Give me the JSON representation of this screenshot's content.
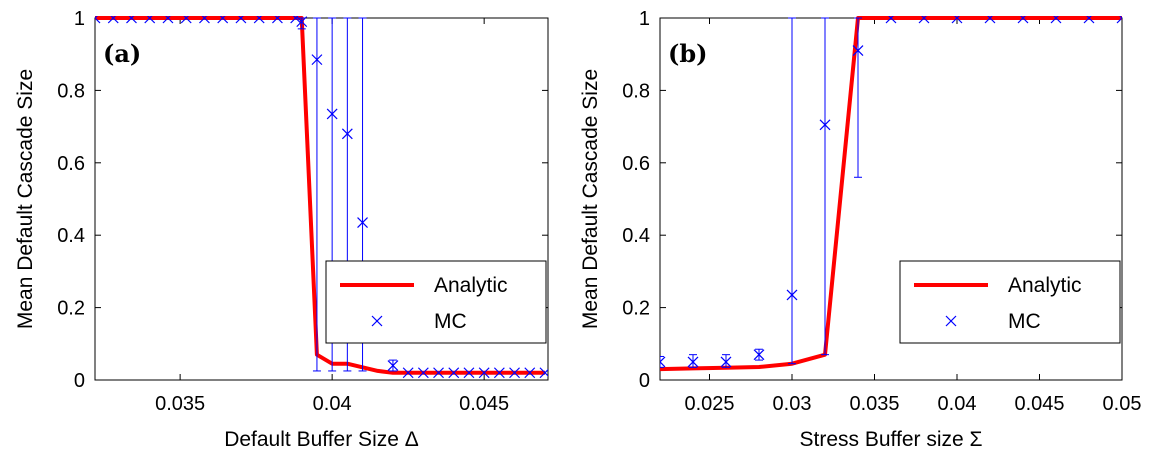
{
  "chart_data": [
    {
      "type": "line",
      "panel_label": "(a)",
      "xlabel": "Default Buffer Size Δ",
      "ylabel": "Mean Default Cascade Size",
      "xlim": [
        0.0322,
        0.0471
      ],
      "ylim": [
        0,
        1
      ],
      "xticks": [
        0.035,
        0.04,
        0.045
      ],
      "xtick_labels": [
        "0.035",
        "0.04",
        "0.045"
      ],
      "yticks": [
        0,
        0.2,
        0.4,
        0.6,
        0.8,
        1
      ],
      "ytick_labels": [
        "0",
        "0.2",
        "0.4",
        "0.6",
        "0.8",
        "1"
      ],
      "grid": false,
      "legend": "lower-right",
      "series": [
        {
          "name": "Analytic",
          "style": "line",
          "color": "#ff0000",
          "x": [
            0.0322,
            0.039,
            0.0395,
            0.04,
            0.0405,
            0.041,
            0.0415,
            0.042,
            0.0425,
            0.043,
            0.0435,
            0.044,
            0.0445,
            0.045,
            0.0455,
            0.046,
            0.0465,
            0.047
          ],
          "y": [
            1.0,
            1.0,
            0.07,
            0.045,
            0.045,
            0.035,
            0.025,
            0.02,
            0.02,
            0.02,
            0.02,
            0.02,
            0.02,
            0.02,
            0.02,
            0.02,
            0.02,
            0.02
          ]
        },
        {
          "name": "MC",
          "style": "marker-x",
          "color": "#0000ff",
          "x": [
            0.0322,
            0.0328,
            0.0334,
            0.034,
            0.0346,
            0.0352,
            0.0358,
            0.0364,
            0.037,
            0.0376,
            0.0382,
            0.0388,
            0.039,
            0.0395,
            0.04,
            0.0405,
            0.041,
            0.042,
            0.0425,
            0.043,
            0.0435,
            0.044,
            0.0445,
            0.045,
            0.0455,
            0.046,
            0.0465,
            0.047
          ],
          "y": [
            1.0,
            1.0,
            1.0,
            1.0,
            1.0,
            1.0,
            1.0,
            1.0,
            1.0,
            1.0,
            1.0,
            1.0,
            0.99,
            0.885,
            0.735,
            0.68,
            0.435,
            0.04,
            0.02,
            0.02,
            0.02,
            0.02,
            0.02,
            0.02,
            0.02,
            0.02,
            0.02,
            0.02
          ],
          "err_low": [
            1.0,
            1.0,
            1.0,
            1.0,
            1.0,
            1.0,
            1.0,
            1.0,
            1.0,
            1.0,
            1.0,
            1.0,
            0.97,
            0.025,
            0.025,
            0.025,
            0.025,
            0.025,
            0.02,
            0.02,
            0.02,
            0.02,
            0.02,
            0.02,
            0.02,
            0.02,
            0.02,
            0.02
          ],
          "err_high": [
            1.0,
            1.0,
            1.0,
            1.0,
            1.0,
            1.0,
            1.0,
            1.0,
            1.0,
            1.0,
            1.0,
            1.0,
            1.0,
            1.0,
            1.0,
            1.0,
            1.0,
            0.055,
            0.02,
            0.02,
            0.02,
            0.02,
            0.02,
            0.02,
            0.02,
            0.02,
            0.02,
            0.02
          ]
        }
      ]
    },
    {
      "type": "line",
      "panel_label": "(b)",
      "xlabel": "Stress Buffer size Σ",
      "ylabel": "Mean Default Cascade Size",
      "xlim": [
        0.022,
        0.05
      ],
      "ylim": [
        0,
        1
      ],
      "xticks": [
        0.025,
        0.03,
        0.035,
        0.04,
        0.045,
        0.05
      ],
      "xtick_labels": [
        "0.025",
        "0.03",
        "0.035",
        "0.04",
        "0.045",
        "0.05"
      ],
      "yticks": [
        0,
        0.2,
        0.4,
        0.6,
        0.8,
        1
      ],
      "ytick_labels": [
        "0",
        "0.2",
        "0.4",
        "0.6",
        "0.8",
        "1"
      ],
      "grid": false,
      "legend": "lower-right",
      "series": [
        {
          "name": "Analytic",
          "style": "line",
          "color": "#ff0000",
          "x": [
            0.022,
            0.024,
            0.026,
            0.028,
            0.03,
            0.032,
            0.034,
            0.036,
            0.038,
            0.04,
            0.042,
            0.044,
            0.046,
            0.048,
            0.05
          ],
          "y": [
            0.03,
            0.032,
            0.034,
            0.036,
            0.045,
            0.07,
            1.0,
            1.0,
            1.0,
            1.0,
            1.0,
            1.0,
            1.0,
            1.0,
            1.0
          ]
        },
        {
          "name": "MC",
          "style": "marker-x",
          "color": "#0000ff",
          "x": [
            0.022,
            0.024,
            0.026,
            0.028,
            0.03,
            0.032,
            0.034,
            0.036,
            0.038,
            0.04,
            0.042,
            0.044,
            0.046,
            0.048,
            0.05
          ],
          "y": [
            0.05,
            0.05,
            0.05,
            0.07,
            0.235,
            0.705,
            0.91,
            1.0,
            1.0,
            1.0,
            1.0,
            1.0,
            1.0,
            1.0,
            1.0
          ],
          "err_low": [
            0.035,
            0.035,
            0.035,
            0.055,
            0.045,
            0.07,
            0.56,
            1.0,
            1.0,
            1.0,
            1.0,
            1.0,
            1.0,
            1.0,
            1.0
          ],
          "err_high": [
            0.065,
            0.07,
            0.07,
            0.085,
            1.0,
            1.0,
            1.0,
            1.0,
            1.0,
            1.0,
            1.0,
            1.0,
            1.0,
            1.0,
            1.0
          ]
        }
      ]
    }
  ]
}
